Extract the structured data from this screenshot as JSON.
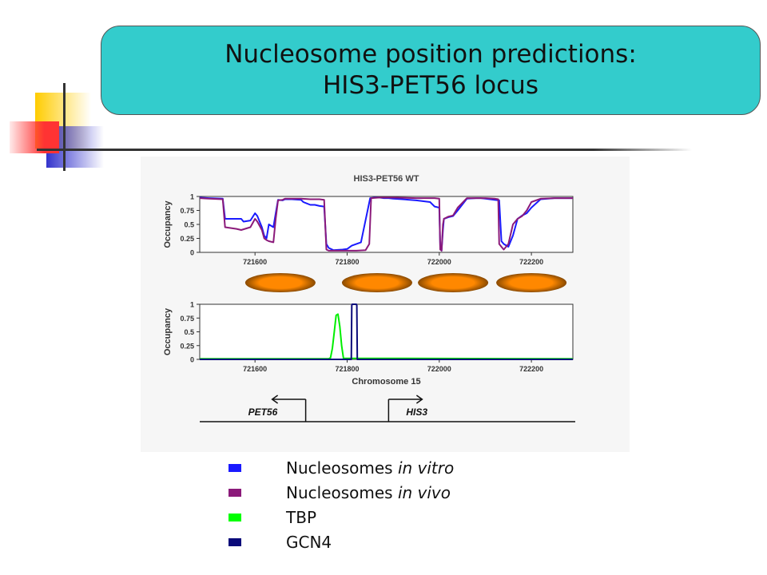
{
  "slide": {
    "title_line1": "Nucleosome position predictions:",
    "title_line2": "HIS3-PET56 locus"
  },
  "colors": {
    "title_box": "#33cccc",
    "deco_yellow": "#ffcc00",
    "deco_red": "#ff3333",
    "deco_blue": "#3333cc"
  },
  "legend": [
    {
      "prefix": "Nucleosomes ",
      "italic": "in vitro",
      "color": "#1a1aff"
    },
    {
      "prefix": "Nucleosomes ",
      "italic": "in vivo",
      "color": "#8b1a7a"
    },
    {
      "prefix": "TBP",
      "italic": "",
      "color": "#00ff00"
    },
    {
      "prefix": "GCN4",
      "italic": "",
      "color": "#0a0a7a"
    }
  ],
  "chart_data": [
    {
      "type": "line",
      "title": "HIS3-PET56 WT",
      "xlabel": "",
      "ylabel": "Occupancy",
      "xlim": [
        721480,
        722290
      ],
      "ylim": [
        0,
        1
      ],
      "xticks": [
        "721600",
        "721800",
        "722000",
        "722200"
      ],
      "yticks": [
        "0",
        "0.25",
        "0.5",
        "0.75",
        "1"
      ],
      "series": [
        {
          "color": "#1a1aff",
          "x": [
            721480,
            721500,
            721530,
            721535,
            721570,
            721575,
            721590,
            721600,
            721605,
            721615,
            721620,
            721625,
            721630,
            721640,
            721645,
            721650,
            721660,
            721665,
            721680,
            721700,
            721705,
            721720,
            721730,
            721740,
            721750,
            721755,
            721760,
            721770,
            721790,
            721800,
            721810,
            721830,
            721850,
            721860,
            721870,
            721880,
            721890,
            721900,
            721920,
            721950,
            721980,
            721990,
            722000,
            722002,
            722005,
            722008,
            722010,
            722020,
            722030,
            722040,
            722060,
            722080,
            722090,
            722100,
            722110,
            722120,
            722130,
            722135,
            722140,
            722150,
            722160,
            722170,
            722180,
            722190,
            722200,
            722220,
            722250,
            722290
          ],
          "y": [
            0.98,
            0.97,
            0.96,
            0.6,
            0.6,
            0.55,
            0.57,
            0.7,
            0.65,
            0.45,
            0.3,
            0.25,
            0.5,
            0.45,
            0.7,
            0.94,
            0.93,
            0.95,
            0.95,
            0.94,
            0.9,
            0.85,
            0.85,
            0.83,
            0.82,
            0.15,
            0.08,
            0.04,
            0.05,
            0.06,
            0.12,
            0.18,
            0.97,
            0.98,
            0.98,
            0.97,
            0.97,
            0.96,
            0.95,
            0.93,
            0.9,
            0.82,
            0.8,
            0.1,
            0.03,
            0.4,
            0.6,
            0.63,
            0.65,
            0.75,
            0.96,
            0.97,
            0.97,
            0.96,
            0.95,
            0.94,
            0.93,
            0.2,
            0.15,
            0.1,
            0.3,
            0.6,
            0.66,
            0.7,
            0.8,
            0.95,
            0.97,
            0.97
          ]
        },
        {
          "color": "#8b1a7a",
          "x": [
            721480,
            721500,
            721530,
            721535,
            721560,
            721570,
            721590,
            721600,
            721605,
            721615,
            721620,
            721625,
            721630,
            721640,
            721645,
            721650,
            721660,
            721665,
            721680,
            721700,
            721720,
            721740,
            721750,
            721755,
            721760,
            721780,
            721800,
            721820,
            721840,
            721848,
            721852,
            721870,
            721900,
            721950,
            721990,
            722000,
            722002,
            722005,
            722008,
            722010,
            722020,
            722030,
            722040,
            722060,
            722100,
            722120,
            722128,
            722130,
            722135,
            722140,
            722150,
            722160,
            722170,
            722180,
            722190,
            722200,
            722220,
            722250,
            722290
          ],
          "y": [
            0.97,
            0.96,
            0.95,
            0.45,
            0.42,
            0.4,
            0.45,
            0.6,
            0.55,
            0.4,
            0.25,
            0.22,
            0.2,
            0.18,
            0.6,
            0.93,
            0.94,
            0.96,
            0.96,
            0.96,
            0.95,
            0.95,
            0.94,
            0.05,
            0.03,
            0.03,
            0.03,
            0.03,
            0.04,
            0.15,
            0.97,
            0.98,
            0.98,
            0.97,
            0.97,
            0.96,
            0.05,
            0.03,
            0.5,
            0.6,
            0.64,
            0.66,
            0.8,
            0.97,
            0.97,
            0.96,
            0.95,
            0.15,
            0.1,
            0.05,
            0.15,
            0.5,
            0.6,
            0.65,
            0.75,
            0.9,
            0.96,
            0.97,
            0.97
          ]
        }
      ]
    },
    {
      "type": "line",
      "title": "",
      "xlabel": "Chromosome 15",
      "ylabel": "Occupancy",
      "xlim": [
        721480,
        722290
      ],
      "ylim": [
        0,
        1
      ],
      "xticks": [
        "721600",
        "721800",
        "722000",
        "722200"
      ],
      "yticks": [
        "0",
        "0.25",
        "0.5",
        "0.75",
        "1"
      ],
      "series": [
        {
          "color": "#00ee00",
          "x": [
            721480,
            721760,
            721764,
            721768,
            721772,
            721776,
            721780,
            721784,
            721788,
            721792,
            722290
          ],
          "y": [
            0.01,
            0.01,
            0.03,
            0.2,
            0.5,
            0.8,
            0.82,
            0.6,
            0.25,
            0.02,
            0.01
          ]
        },
        {
          "color": "#0a0a7a",
          "x": [
            721480,
            721809,
            721810,
            721811,
            721820,
            721821,
            721822,
            722290
          ],
          "y": [
            0.0,
            0.0,
            0.98,
            1.0,
            1.0,
            0.98,
            0.0,
            0.0
          ]
        }
      ]
    }
  ],
  "nucleosomes": {
    "color": "#ff8800",
    "centers": [
      721655,
      721865,
      722030,
      722200
    ]
  },
  "genes": [
    {
      "name": "PET56",
      "direction": "left",
      "tss": 721710
    },
    {
      "name": "HIS3",
      "direction": "right",
      "tss": 721890
    }
  ]
}
